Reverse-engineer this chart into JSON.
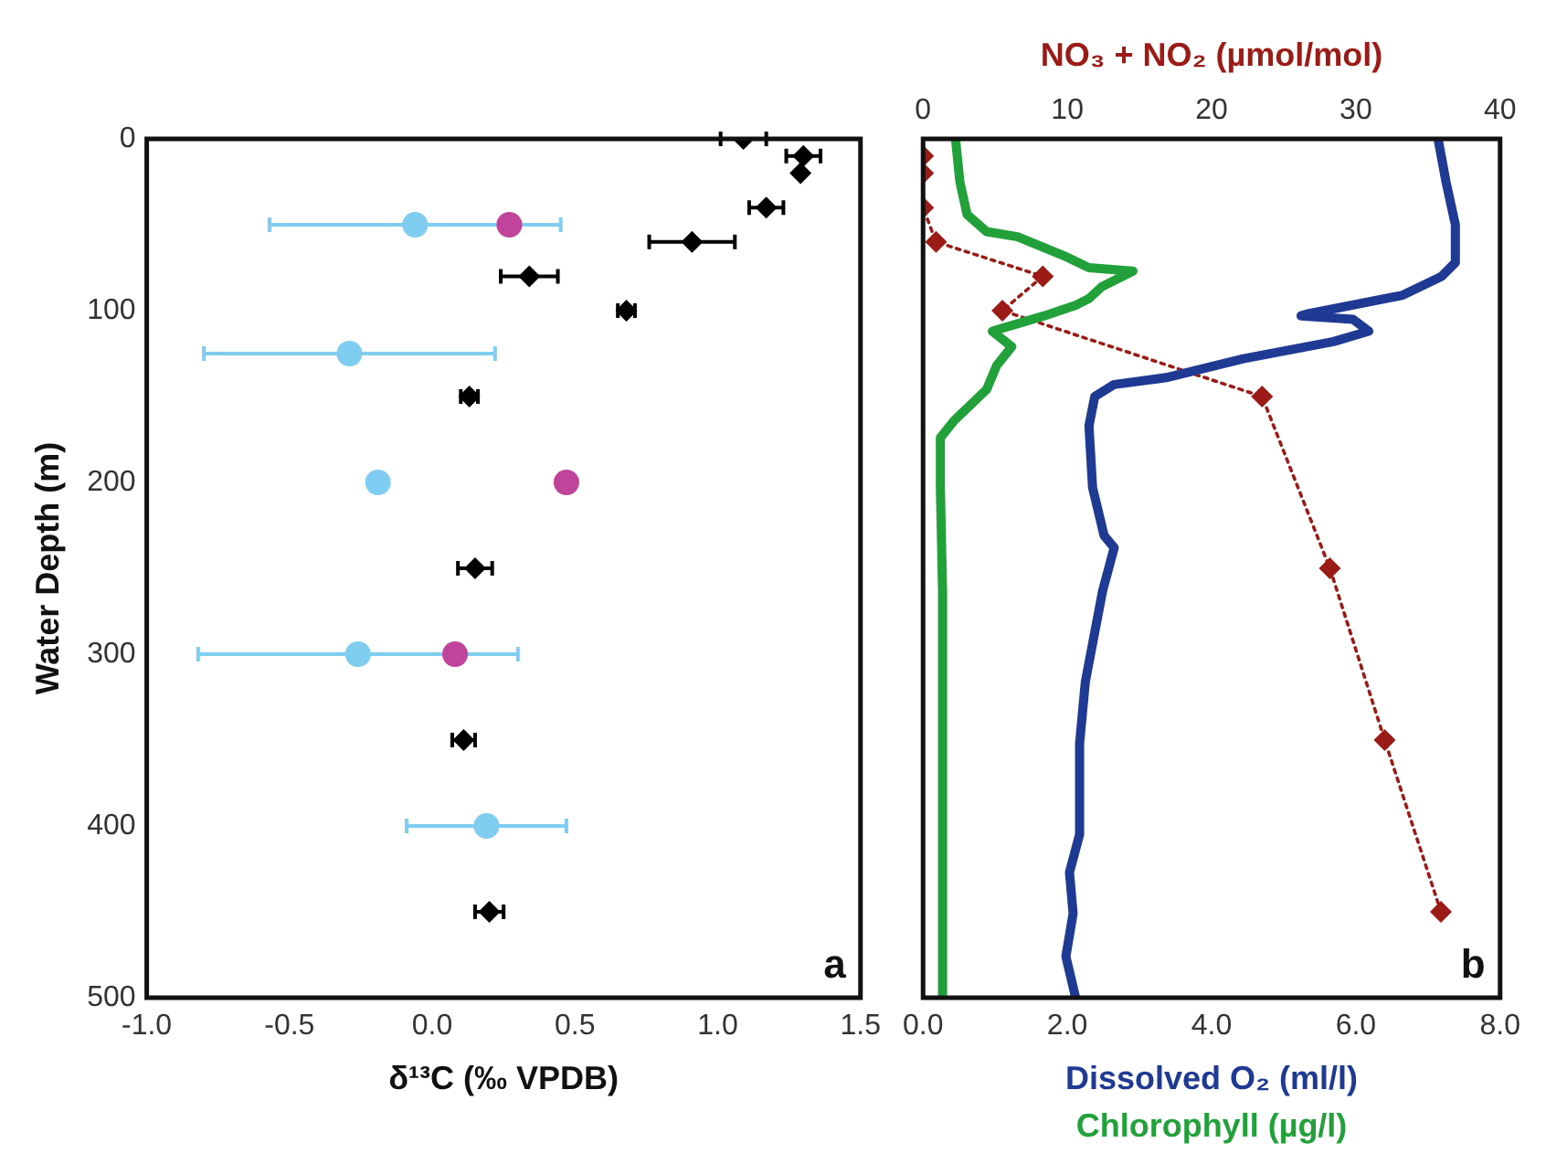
{
  "chart_data": [
    {
      "type": "scatter",
      "xlabel": "δ¹³C (‰ VPDB)",
      "ylabel": "Water Depth (m)",
      "xlim": [
        -1,
        1.5
      ],
      "xticks": [
        {
          "value": -1,
          "label": "-1.0"
        },
        {
          "value": -0.5,
          "label": "-0.5"
        },
        {
          "value": 0,
          "label": "0.0"
        },
        {
          "value": 0.5,
          "label": "0.5"
        },
        {
          "value": 1,
          "label": "1.0"
        },
        {
          "value": 1.5,
          "label": "1.5"
        }
      ],
      "ylim": [
        500,
        0
      ],
      "yticks": [
        0,
        100,
        200,
        300,
        400,
        500
      ],
      "grid": false,
      "legend": false,
      "annotations": [
        "a"
      ],
      "series": [
        {
          "color": "#000000",
          "marker": "diamond",
          "x": [
            1.09,
            1.3,
            1.29,
            1.17,
            0.91,
            0.34,
            0.68,
            0.13,
            0.15,
            0.11,
            0.2
          ],
          "values": [
            0,
            10,
            20,
            40,
            60,
            80,
            100,
            150,
            250,
            350,
            450
          ],
          "xerrors": [
            0.08,
            0.06,
            null,
            0.06,
            0.15,
            0.1,
            0.03,
            0.03,
            0.06,
            0.04,
            0.05
          ]
        },
        {
          "color": "#7fcdf0",
          "marker": "circle",
          "x": [
            -0.06,
            -0.29,
            -0.19,
            -0.26,
            0.19
          ],
          "values": [
            50,
            125,
            200,
            300,
            400
          ],
          "xerrors": [
            0.51,
            0.51,
            null,
            0.56,
            0.28
          ]
        },
        {
          "color": "#c0449a",
          "marker": "circle",
          "x": [
            0.27,
            0.47,
            0.08
          ],
          "values": [
            50,
            200,
            300
          ]
        }
      ]
    },
    {
      "type": "line",
      "ylim": [
        500,
        0
      ],
      "yticks": [
        0,
        100,
        200,
        300,
        400,
        500
      ],
      "tick_labels": "x",
      "xlim": [
        0,
        8
      ],
      "xticks": [
        {
          "value": 0,
          "label": "0.0"
        },
        {
          "value": 2,
          "label": "2.0"
        },
        {
          "value": 4,
          "label": "4.0"
        },
        {
          "value": 6,
          "label": "6.0"
        },
        {
          "value": 8,
          "label": "8.0"
        }
      ],
      "x2lim": [
        0,
        40
      ],
      "x2ticks": [
        0,
        10,
        20,
        30,
        40
      ],
      "grid": false,
      "legend": false,
      "annotations": [
        "b"
      ],
      "series": [
        {
          "name": "Dissolved O₂ (ml/l)",
          "color": "#1f3a93",
          "marker": "none",
          "x": [
            7.14,
            7.25,
            7.38,
            7.38,
            7.19,
            6.65,
            5.32,
            5.24,
            5.96,
            6.18,
            5.69,
            4.44,
            3.37,
            2.65,
            2.38,
            2.3,
            2.35,
            2.51,
            2.65,
            2.49,
            2.25,
            2.17,
            2.17,
            2.03,
            2.08,
            1.98,
            2.11
          ],
          "values": [
            0,
            25,
            50,
            72,
            80,
            91,
            102,
            103,
            105,
            112,
            118,
            128,
            139,
            143,
            150,
            167,
            203,
            231,
            238,
            263,
            316,
            352,
            405,
            427,
            451,
            476,
            499
          ]
        },
        {
          "name": "Chlorophyll (µg/l)",
          "color": "#22a03a",
          "marker": "none",
          "x": [
            0.45,
            0.51,
            0.61,
            0.88,
            1.31,
            1.95,
            2.3,
            2.91,
            2.48,
            2.3,
            2.11,
            1.68,
            0.96,
            1.23,
            1.02,
            0.88,
            0.43,
            0.24,
            0.24,
            0.27,
            0.27
          ],
          "values": [
            0,
            25,
            44,
            54,
            57,
            68,
            75,
            77,
            86,
            93,
            97,
            103,
            112,
            121,
            132,
            146,
            164,
            174,
            203,
            263,
            499
          ]
        },
        {
          "name": "NO₃ + NO₂ (µmol/mol)",
          "color": "#9b1b16",
          "axis": "x2",
          "marker": "diamond",
          "line_style": "dotted",
          "x": [
            0,
            0,
            0,
            0.9,
            8.3,
            5.5,
            23.5,
            28.2,
            32,
            35.9
          ],
          "values": [
            10,
            20,
            40,
            60,
            80,
            100,
            150,
            250,
            350,
            450
          ]
        }
      ]
    }
  ]
}
